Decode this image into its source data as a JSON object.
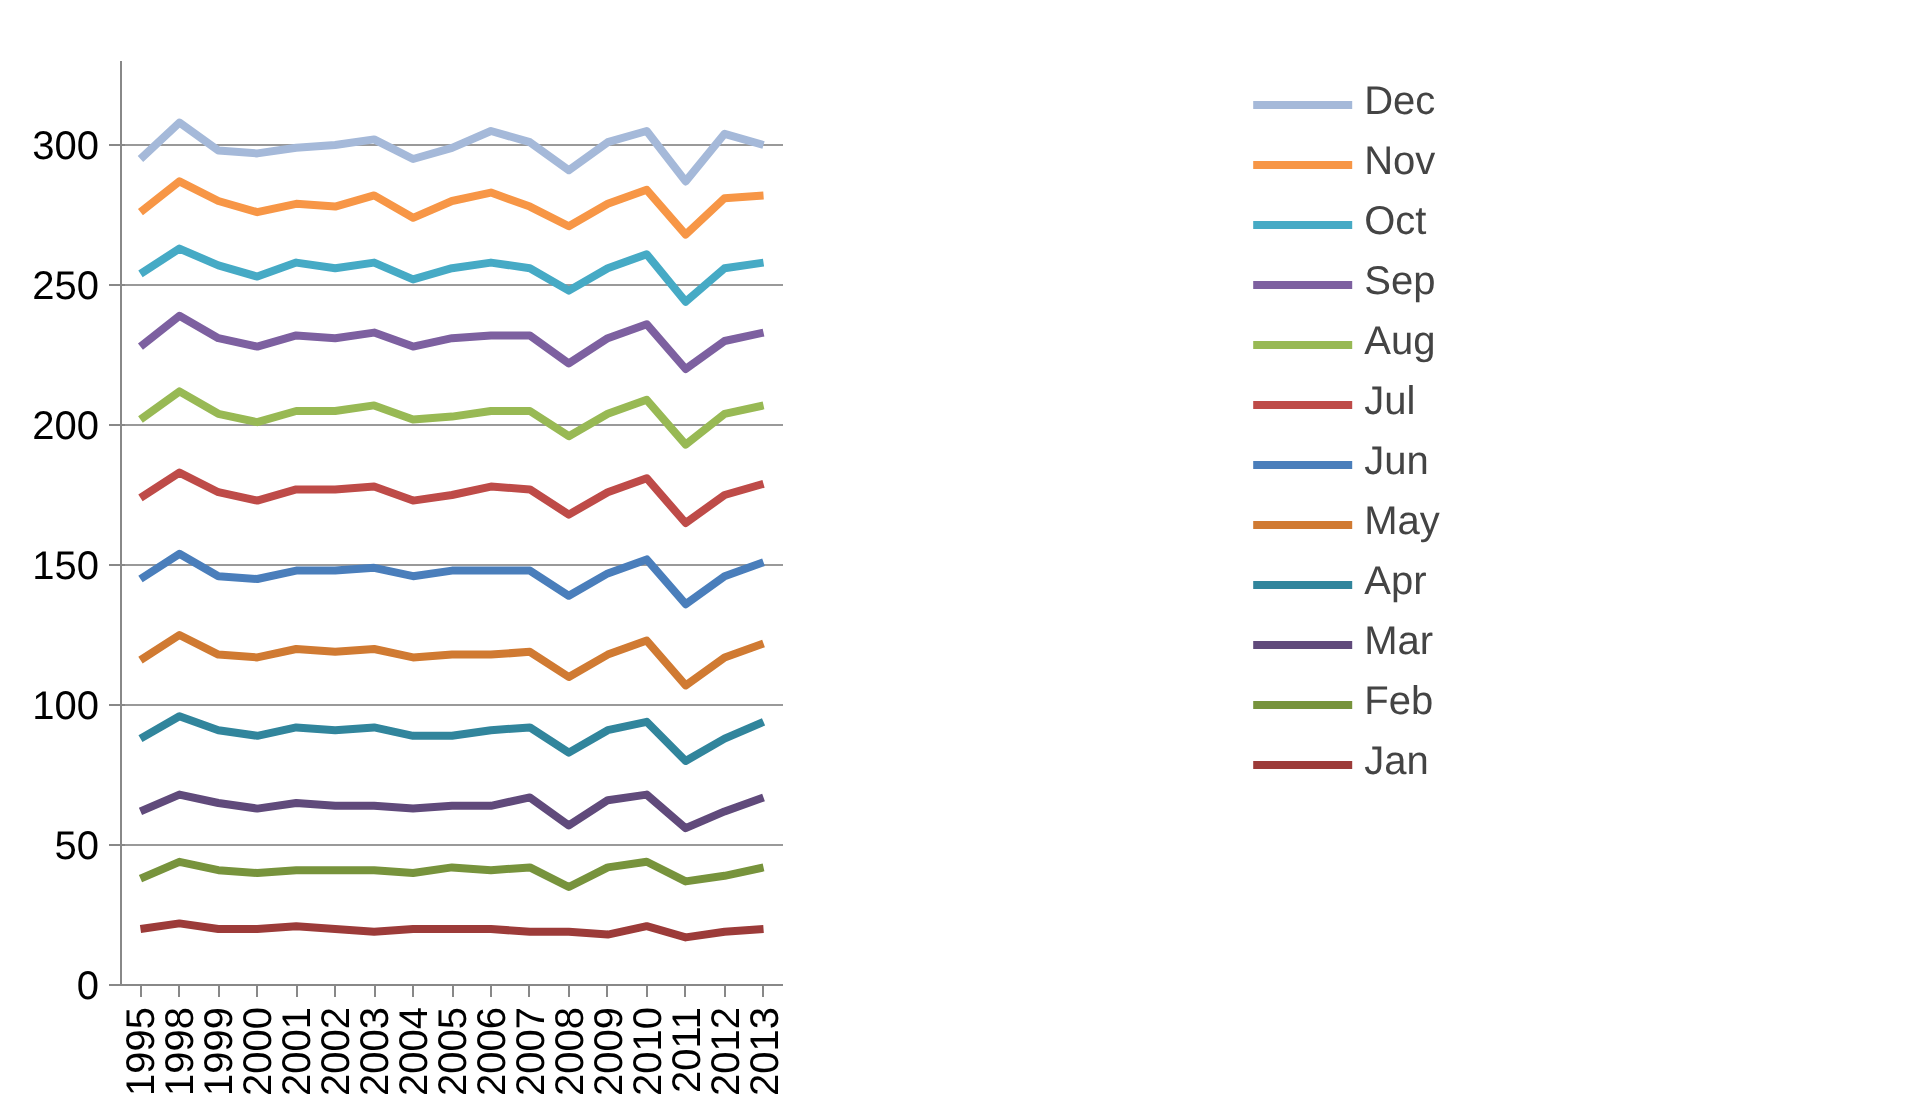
{
  "chart_data": {
    "type": "line",
    "categories": [
      "1995",
      "1998",
      "1999",
      "2000",
      "2001",
      "2002",
      "2003",
      "2004",
      "2005",
      "2006",
      "2007",
      "2008",
      "2009",
      "2010",
      "2011",
      "2012",
      "2013"
    ],
    "ylim": [
      0,
      330
    ],
    "yticks": [
      0,
      50,
      100,
      150,
      200,
      250,
      300
    ],
    "grid": "y",
    "legend": "right",
    "marker": "none",
    "line_style": "solid",
    "series": [
      {
        "name": "Jan",
        "color": "#9c3b39",
        "values": [
          20,
          22,
          20,
          20,
          21,
          20,
          19,
          20,
          20,
          20,
          19,
          19,
          18,
          21,
          17,
          19,
          20
        ]
      },
      {
        "name": "Feb",
        "color": "#77933c",
        "values": [
          38,
          44,
          41,
          40,
          41,
          41,
          41,
          40,
          42,
          41,
          42,
          35,
          42,
          44,
          37,
          39,
          42
        ]
      },
      {
        "name": "Mar",
        "color": "#604a7b",
        "values": [
          62,
          68,
          65,
          63,
          65,
          64,
          64,
          63,
          64,
          64,
          67,
          57,
          66,
          68,
          56,
          62,
          67
        ]
      },
      {
        "name": "Apr",
        "color": "#31859c",
        "values": [
          88,
          96,
          91,
          89,
          92,
          91,
          92,
          89,
          89,
          91,
          92,
          83,
          91,
          94,
          80,
          88,
          94
        ]
      },
      {
        "name": "May",
        "color": "#d07a32",
        "values": [
          116,
          125,
          118,
          117,
          120,
          119,
          120,
          117,
          118,
          118,
          119,
          110,
          118,
          123,
          107,
          117,
          122
        ]
      },
      {
        "name": "Jun",
        "color": "#4a7ebb",
        "values": [
          145,
          154,
          146,
          145,
          148,
          148,
          149,
          146,
          148,
          148,
          148,
          139,
          147,
          152,
          136,
          146,
          151
        ]
      },
      {
        "name": "Jul",
        "color": "#be4b48",
        "values": [
          174,
          183,
          176,
          173,
          177,
          177,
          178,
          173,
          175,
          178,
          177,
          168,
          176,
          181,
          165,
          175,
          179
        ]
      },
      {
        "name": "Aug",
        "color": "#98b954",
        "values": [
          202,
          212,
          204,
          201,
          205,
          205,
          207,
          202,
          203,
          205,
          205,
          196,
          204,
          209,
          193,
          204,
          207
        ]
      },
      {
        "name": "Sep",
        "color": "#7d60a0",
        "values": [
          228,
          239,
          231,
          228,
          232,
          231,
          233,
          228,
          231,
          232,
          232,
          222,
          231,
          236,
          220,
          230,
          233
        ]
      },
      {
        "name": "Oct",
        "color": "#46aac5",
        "values": [
          254,
          263,
          257,
          253,
          258,
          256,
          258,
          252,
          256,
          258,
          256,
          248,
          256,
          261,
          244,
          256,
          258
        ]
      },
      {
        "name": "Nov",
        "color": "#f79646",
        "values": [
          276,
          287,
          280,
          276,
          279,
          278,
          282,
          274,
          280,
          283,
          278,
          271,
          279,
          284,
          268,
          281,
          282
        ]
      },
      {
        "name": "Dec",
        "color": "#a5b9d9",
        "values": [
          295,
          308,
          298,
          297,
          299,
          300,
          302,
          295,
          299,
          305,
          301,
          291,
          301,
          305,
          287,
          304,
          300
        ]
      }
    ]
  }
}
